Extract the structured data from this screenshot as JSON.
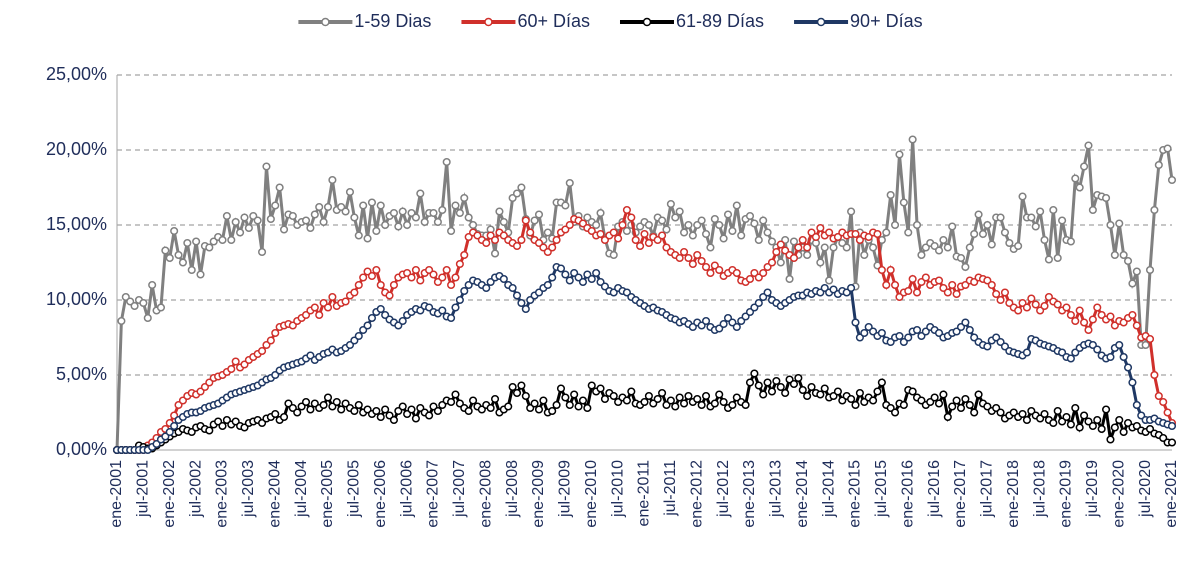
{
  "chart_data": {
    "type": "line",
    "categories": [
      "ene-2001",
      null,
      null,
      null,
      null,
      null,
      "jul-2001",
      null,
      null,
      null,
      null,
      null,
      "ene-2002",
      null,
      null,
      null,
      null,
      null,
      "jul-2002",
      null,
      null,
      null,
      null,
      null,
      "ene-2003",
      null,
      null,
      null,
      null,
      null,
      "jul-2003",
      null,
      null,
      null,
      null,
      null,
      "ene-2004",
      null,
      null,
      null,
      null,
      null,
      "jul-2004",
      null,
      null,
      null,
      null,
      null,
      "ene-2005",
      null,
      null,
      null,
      null,
      null,
      "jul-2005",
      null,
      null,
      null,
      null,
      null,
      "ene-2006",
      null,
      null,
      null,
      null,
      null,
      "jul-2006",
      null,
      null,
      null,
      null,
      null,
      "ene-2007",
      null,
      null,
      null,
      null,
      null,
      "jul-2007",
      null,
      null,
      null,
      null,
      null,
      "ene-2008",
      null,
      null,
      null,
      null,
      null,
      "jul-2008",
      null,
      null,
      null,
      null,
      null,
      "ene-2009",
      null,
      null,
      null,
      null,
      null,
      "jul-2009",
      null,
      null,
      null,
      null,
      null,
      "ene-2010",
      null,
      null,
      null,
      null,
      null,
      "jul-2010",
      null,
      null,
      null,
      null,
      null,
      "ene-2011",
      null,
      null,
      null,
      null,
      null,
      "jul-2011",
      null,
      null,
      null,
      null,
      null,
      "ene-2012",
      null,
      null,
      null,
      null,
      null,
      "jul-2012",
      null,
      null,
      null,
      null,
      null,
      "ene-2013",
      null,
      null,
      null,
      null,
      null,
      "jul-2013",
      null,
      null,
      null,
      null,
      null,
      "ene-2014",
      null,
      null,
      null,
      null,
      null,
      "jul-2014",
      null,
      null,
      null,
      null,
      null,
      "ene-2015",
      null,
      null,
      null,
      null,
      null,
      "jul-2015",
      null,
      null,
      null,
      null,
      null,
      "ene-2016",
      null,
      null,
      null,
      null,
      null,
      "jul-2016",
      null,
      null,
      null,
      null,
      null,
      "ene-2017",
      null,
      null,
      null,
      null,
      null,
      "jul-2017",
      null,
      null,
      null,
      null,
      null,
      "ene-2018",
      null,
      null,
      null,
      null,
      null,
      "jul-2018",
      null,
      null,
      null,
      null,
      null,
      "ene-2019",
      null,
      null,
      null,
      null,
      null,
      "jul-2019",
      null,
      null,
      null,
      null,
      null,
      "ene-2020",
      null,
      null,
      null,
      null,
      null,
      "jul-2020",
      null,
      null,
      null,
      null,
      null,
      "ene-2021"
    ],
    "series": [
      {
        "name": "1-59 Dias",
        "color": "#808080",
        "values": [
          0,
          8.6,
          10.2,
          9.9,
          9.6,
          10.0,
          9.8,
          8.8,
          11.0,
          9.3,
          9.5,
          13.3,
          12.8,
          14.6,
          13.0,
          12.5,
          13.8,
          12.0,
          13.9,
          11.7,
          13.6,
          13.5,
          13.9,
          14.2,
          14.0,
          15.6,
          14.0,
          15.2,
          14.5,
          15.5,
          14.8,
          15.6,
          15.3,
          13.2,
          18.9,
          15.4,
          16.3,
          17.5,
          14.7,
          15.7,
          15.6,
          15.0,
          15.2,
          15.3,
          14.8,
          15.7,
          16.2,
          15.2,
          16.2,
          18.0,
          16.0,
          16.2,
          15.9,
          17.2,
          15.5,
          14.3,
          16.3,
          14.1,
          16.5,
          14.6,
          16.3,
          15.0,
          15.6,
          15.8,
          14.9,
          15.9,
          15.0,
          15.8,
          15.5,
          17.1,
          15.2,
          15.8,
          15.8,
          15.2,
          16.0,
          19.2,
          14.6,
          16.3,
          15.8,
          16.8,
          15.5,
          15.0,
          14.4,
          14.3,
          14.3,
          14.7,
          13.1,
          15.9,
          15.2,
          14.5,
          16.8,
          17.1,
          17.5,
          15.4,
          14.3,
          15.3,
          15.7,
          14.0,
          14.5,
          14.1,
          16.5,
          16.5,
          16.3,
          17.8,
          15.2,
          15.6,
          14.9,
          15.5,
          15.2,
          15.0,
          15.8,
          14.1,
          13.1,
          13.0,
          14.9,
          15.2,
          14.6,
          15.0,
          14.5,
          14.9,
          15.2,
          15.0,
          14.3,
          15.5,
          15.3,
          14.7,
          16.4,
          15.5,
          15.9,
          14.5,
          15.0,
          14.3,
          15.0,
          15.3,
          14.4,
          13.5,
          15.4,
          15.0,
          14.1,
          15.7,
          14.6,
          16.3,
          14.3,
          15.4,
          15.6,
          15.1,
          14.0,
          15.3,
          14.5,
          13.9,
          13.5,
          12.5,
          14.0,
          11.4,
          13.9,
          13.0,
          13.5,
          13.0,
          14.0,
          13.8,
          12.5,
          13.5,
          11.3,
          13.5,
          14.2,
          13.8,
          13.5,
          15.9,
          10.9,
          14.5,
          13.0,
          14.0,
          13.5,
          12.3,
          14.0,
          14.5,
          17.0,
          15.0,
          19.7,
          16.5,
          14.5,
          20.7,
          15.0,
          13.0,
          13.5,
          13.8,
          13.6,
          13.3,
          14.0,
          13.5,
          14.9,
          12.9,
          12.8,
          12.2,
          13.5,
          14.4,
          15.7,
          14.4,
          15.0,
          13.7,
          15.5,
          15.5,
          14.5,
          13.8,
          13.4,
          13.6,
          16.9,
          15.5,
          15.5,
          14.9,
          15.9,
          14.0,
          12.7,
          16.0,
          12.8,
          15.3,
          14.0,
          13.9,
          18.1,
          17.5,
          18.9,
          20.3,
          16.0,
          17.0,
          16.9,
          16.8,
          15.0,
          13.0,
          15.1,
          13.0,
          12.6,
          11.1,
          11.9,
          7.0,
          7.0,
          12.0,
          16.0,
          19.0,
          20.0,
          20.1,
          18.0
        ]
      },
      {
        "name": "60+ Días",
        "color": "#d0302b",
        "values": [
          0,
          0,
          0,
          0,
          0,
          0,
          0,
          0.3,
          0.5,
          0.8,
          1.2,
          1.4,
          1.8,
          2.3,
          3.0,
          3.3,
          3.6,
          3.8,
          3.7,
          3.9,
          4.2,
          4.5,
          4.8,
          4.9,
          5.0,
          5.2,
          5.4,
          5.9,
          5.5,
          5.7,
          6.0,
          6.2,
          6.4,
          6.6,
          7.0,
          7.3,
          7.8,
          8.2,
          8.3,
          8.4,
          8.3,
          8.6,
          8.8,
          9.0,
          9.3,
          9.5,
          9.0,
          9.8,
          9.5,
          10.2,
          9.6,
          9.8,
          9.9,
          10.3,
          10.5,
          11.0,
          11.5,
          11.9,
          11.6,
          12.0,
          11.0,
          10.5,
          10.3,
          11.0,
          11.5,
          11.7,
          11.8,
          11.5,
          12.0,
          11.3,
          11.8,
          12.0,
          11.7,
          11.2,
          11.5,
          12.0,
          11.0,
          11.5,
          12.4,
          13.0,
          14.2,
          14.5,
          14.3,
          14.0,
          13.8,
          14.3,
          14.0,
          14.5,
          14.3,
          14.0,
          13.8,
          13.6,
          14.0,
          15.3,
          14.5,
          14.0,
          13.8,
          13.5,
          13.2,
          13.5,
          14.0,
          14.5,
          14.7,
          15.0,
          15.4,
          15.3,
          15.1,
          14.8,
          14.6,
          14.3,
          14.4,
          14.0,
          14.3,
          14.5,
          14.1,
          15.0,
          16.0,
          15.5,
          14.0,
          13.6,
          14.4,
          13.8,
          14.2,
          14.0,
          14.3,
          13.5,
          13.2,
          13.0,
          12.8,
          13.2,
          12.8,
          12.4,
          13.0,
          12.6,
          12.2,
          11.8,
          12.3,
          12.0,
          11.6,
          11.8,
          12.0,
          11.8,
          11.3,
          11.2,
          11.4,
          11.8,
          11.5,
          11.8,
          12.2,
          12.5,
          13.2,
          13.7,
          13.3,
          13.0,
          12.8,
          13.5,
          14.0,
          13.5,
          14.5,
          14.2,
          14.8,
          14.3,
          14.5,
          14.1,
          14.2,
          14.5,
          14.3,
          14.4,
          14.4,
          14.0,
          14.3,
          14.2,
          14.5,
          14.4,
          12.0,
          11.0,
          12.0,
          11.0,
          10.2,
          10.5,
          10.6,
          11.4,
          10.5,
          11.2,
          11.5,
          11.0,
          11.2,
          11.3,
          10.8,
          10.5,
          11.0,
          10.4,
          10.9,
          11.0,
          11.3,
          11.2,
          11.5,
          11.4,
          11.3,
          11.0,
          10.4,
          10.0,
          10.5,
          9.8,
          9.5,
          9.3,
          9.8,
          9.5,
          10.1,
          9.7,
          9.3,
          9.6,
          10.2,
          9.9,
          9.7,
          9.3,
          9.5,
          9.0,
          8.6,
          9.3,
          8.5,
          8.0,
          8.7,
          9.5,
          9.0,
          8.7,
          8.9,
          8.3,
          8.6,
          8.5,
          8.8,
          9.0,
          8.3,
          7.5,
          7.6,
          7.4,
          5.0,
          3.6,
          3.2,
          2.5,
          1.8
        ]
      },
      {
        "name": "61-89 Días",
        "color": "#000000",
        "values": [
          0,
          0,
          0,
          0,
          0,
          0.3,
          0.2,
          0.1,
          0.1,
          0.3,
          0.5,
          0.7,
          0.9,
          1.1,
          1.2,
          1.4,
          1.3,
          1.2,
          1.5,
          1.6,
          1.4,
          1.3,
          1.7,
          1.9,
          1.6,
          2.0,
          1.7,
          1.9,
          1.6,
          1.5,
          1.8,
          1.9,
          2.0,
          1.8,
          2.1,
          2.2,
          2.4,
          2.0,
          2.2,
          3.1,
          2.8,
          2.5,
          2.9,
          3.2,
          2.7,
          3.1,
          2.8,
          3.0,
          3.5,
          2.9,
          3.2,
          2.7,
          3.1,
          2.8,
          2.6,
          3.0,
          2.5,
          2.7,
          2.4,
          2.6,
          2.2,
          2.7,
          2.3,
          2.0,
          2.6,
          2.9,
          2.4,
          2.7,
          2.1,
          2.8,
          2.5,
          2.3,
          2.9,
          2.6,
          3.0,
          3.3,
          3.2,
          3.7,
          3.1,
          2.8,
          2.6,
          3.3,
          2.9,
          2.7,
          3.0,
          2.8,
          3.4,
          2.5,
          2.7,
          2.9,
          4.2,
          3.8,
          4.3,
          3.6,
          2.8,
          3.1,
          2.7,
          3.3,
          2.5,
          2.6,
          3.0,
          4.1,
          3.5,
          3.0,
          3.7,
          2.9,
          3.3,
          2.8,
          4.3,
          3.9,
          4.1,
          3.4,
          3.8,
          3.6,
          3.2,
          3.5,
          3.3,
          3.9,
          3.1,
          3.0,
          3.2,
          3.6,
          3.1,
          3.4,
          3.8,
          3.0,
          3.3,
          2.9,
          3.5,
          3.1,
          3.6,
          3.2,
          3.4,
          3.0,
          3.6,
          2.9,
          3.1,
          3.7,
          3.2,
          2.8,
          3.0,
          3.5,
          3.2,
          3.0,
          4.5,
          5.1,
          4.3,
          3.7,
          4.5,
          3.9,
          4.6,
          4.2,
          3.8,
          4.7,
          4.4,
          4.8,
          4.0,
          3.6,
          4.2,
          3.8,
          3.7,
          4.1,
          3.5,
          3.6,
          3.9,
          3.3,
          3.6,
          3.4,
          3.0,
          3.8,
          3.2,
          3.5,
          3.3,
          3.9,
          4.5,
          3.0,
          2.8,
          2.5,
          3.1,
          3.0,
          4.0,
          3.9,
          3.5,
          3.3,
          3.0,
          3.2,
          3.5,
          3.1,
          3.7,
          2.2,
          2.9,
          3.3,
          2.8,
          3.4,
          3.0,
          2.5,
          3.7,
          3.1,
          2.9,
          2.6,
          2.8,
          2.5,
          2.1,
          2.3,
          2.5,
          2.2,
          2.4,
          2.0,
          2.6,
          2.3,
          2.1,
          2.4,
          2.0,
          1.8,
          2.6,
          1.9,
          2.2,
          1.7,
          2.8,
          1.5,
          2.3,
          1.9,
          1.6,
          2.0,
          1.4,
          2.7,
          0.7,
          1.5,
          2.0,
          1.2,
          1.8,
          1.5,
          1.6,
          1.3,
          1.2,
          1.4,
          1.1,
          1.0,
          0.8,
          0.5,
          0.5
        ]
      },
      {
        "name": "90+ Días",
        "color": "#1f3864",
        "values": [
          0,
          0,
          0,
          0,
          0,
          0,
          0,
          0,
          0.2,
          0.4,
          0.7,
          0.9,
          1.2,
          1.6,
          2.0,
          2.2,
          2.4,
          2.5,
          2.5,
          2.6,
          2.8,
          2.9,
          3.0,
          3.1,
          3.3,
          3.5,
          3.7,
          3.8,
          3.9,
          4.0,
          4.1,
          4.2,
          4.3,
          4.5,
          4.7,
          4.8,
          5.0,
          5.3,
          5.5,
          5.6,
          5.7,
          5.8,
          5.9,
          6.1,
          6.3,
          6.0,
          6.2,
          6.4,
          6.5,
          6.7,
          6.5,
          6.6,
          6.8,
          7.0,
          7.3,
          7.6,
          8.0,
          8.3,
          8.8,
          9.2,
          9.4,
          9.0,
          8.7,
          8.5,
          8.3,
          8.6,
          9.0,
          9.2,
          9.4,
          9.3,
          9.6,
          9.5,
          9.2,
          9.1,
          9.3,
          8.9,
          8.8,
          9.5,
          10.0,
          10.6,
          11.0,
          11.3,
          11.2,
          11.0,
          10.8,
          11.2,
          11.5,
          11.6,
          11.4,
          11.0,
          10.8,
          10.3,
          9.8,
          9.4,
          10.0,
          10.3,
          10.5,
          10.8,
          11.0,
          11.5,
          12.2,
          12.1,
          11.7,
          11.3,
          11.8,
          11.5,
          11.2,
          11.7,
          11.4,
          11.8,
          11.2,
          10.9,
          10.6,
          10.5,
          10.8,
          10.6,
          10.5,
          10.2,
          10.0,
          9.8,
          9.6,
          9.4,
          9.5,
          9.3,
          9.2,
          9.0,
          8.8,
          8.7,
          8.5,
          8.6,
          8.4,
          8.2,
          8.5,
          8.3,
          8.6,
          8.2,
          8.0,
          8.1,
          8.4,
          8.8,
          8.5,
          8.2,
          8.6,
          8.9,
          9.2,
          9.5,
          9.8,
          10.2,
          10.5,
          10.0,
          9.8,
          9.6,
          9.8,
          10.0,
          10.2,
          10.3,
          10.3,
          10.5,
          10.4,
          10.6,
          10.5,
          10.8,
          10.5,
          10.7,
          10.4,
          10.6,
          10.5,
          10.8,
          8.5,
          7.5,
          7.8,
          8.2,
          7.9,
          7.6,
          7.8,
          7.3,
          7.2,
          7.5,
          7.6,
          7.2,
          7.5,
          7.9,
          8.0,
          7.6,
          7.9,
          8.2,
          8.0,
          7.8,
          7.5,
          7.6,
          7.8,
          7.9,
          8.2,
          8.5,
          8.0,
          7.5,
          7.2,
          7.0,
          6.9,
          7.3,
          7.5,
          7.2,
          6.9,
          6.6,
          6.5,
          6.4,
          6.3,
          6.5,
          7.4,
          7.3,
          7.1,
          7.0,
          6.9,
          6.8,
          6.6,
          6.5,
          6.2,
          6.1,
          6.5,
          6.8,
          7.0,
          7.1,
          7.0,
          6.7,
          6.3,
          6.1,
          6.2,
          6.8,
          7.0,
          6.2,
          5.5,
          4.5,
          3.0,
          2.3,
          2.0,
          2.0,
          2.1,
          1.9,
          1.8,
          1.7,
          1.6
        ]
      }
    ],
    "ylim": [
      0,
      25
    ],
    "yticks": [
      {
        "value": 0,
        "label": "0,00%"
      },
      {
        "value": 5,
        "label": "5,00%"
      },
      {
        "value": 10,
        "label": "10,00%"
      },
      {
        "value": 15,
        "label": "15,00%"
      },
      {
        "value": 20,
        "label": "20,00%"
      },
      {
        "value": 25,
        "label": "25,00%"
      }
    ],
    "grid": true,
    "legend": "top"
  }
}
